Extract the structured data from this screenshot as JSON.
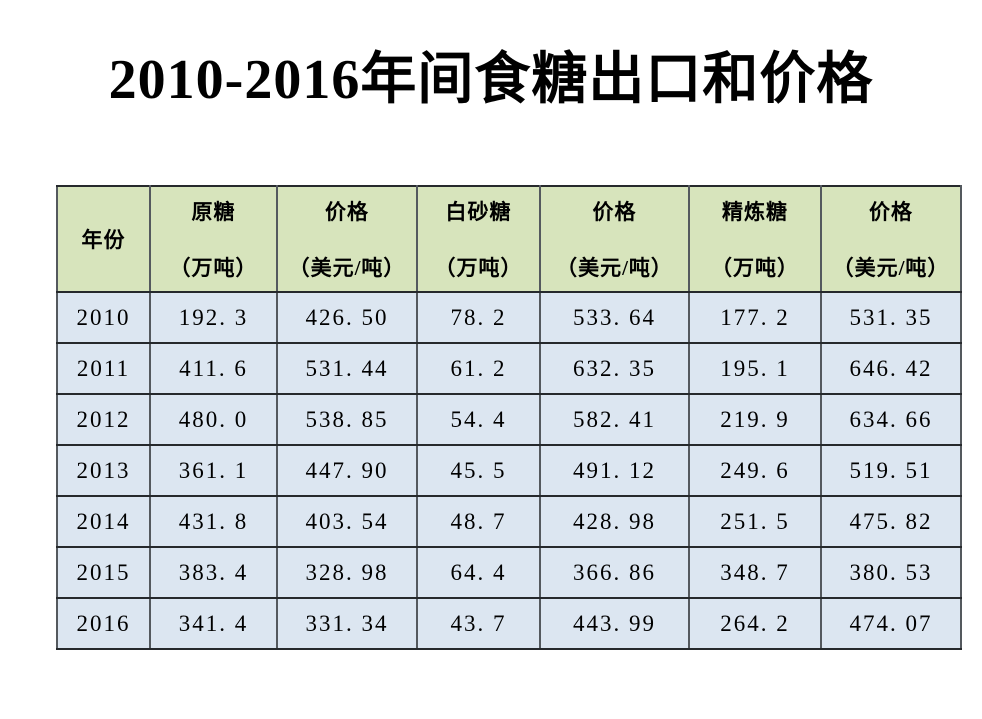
{
  "page": {
    "background": "#ffffff",
    "text_color": "#000000"
  },
  "slide": {
    "title": "2010-2016年间食糖出口和价格"
  },
  "table": {
    "colors": {
      "header_bg": "#d7e4bc",
      "row_bg": "#dce6f1",
      "h_border": "#26292c",
      "v_border": "#54595e"
    },
    "header": [
      {
        "line1": "年份",
        "line2": ""
      },
      {
        "line1": "原糖",
        "line2": "（万吨）"
      },
      {
        "line1": "价格",
        "line2": "（美元/吨）"
      },
      {
        "line1": "白砂糖",
        "line2": "（万吨）"
      },
      {
        "line1": "价格",
        "line2": "（美元/吨）"
      },
      {
        "line1": "精炼糖",
        "line2": "（万吨）"
      },
      {
        "line1": "价格",
        "line2": "（美元/吨）"
      }
    ],
    "rows": [
      [
        "2010",
        "192.3",
        "426.50",
        "78.2",
        "533.64",
        "177.2",
        "531.35"
      ],
      [
        "2011",
        "411.6",
        "531.44",
        "61.2",
        "632.35",
        "195.1",
        "646.42"
      ],
      [
        "2012",
        "480.0",
        "538.85",
        "54.4",
        "582.41",
        "219.9",
        "634.66"
      ],
      [
        "2013",
        "361.1",
        "447.90",
        "45.5",
        "491.12",
        "249.6",
        "519.51"
      ],
      [
        "2014",
        "431.8",
        "403.54",
        "48.7",
        "428.98",
        "251.5",
        "475.82"
      ],
      [
        "2015",
        "383.4",
        "328.98",
        "64.4",
        "366.86",
        "348.7",
        "380.53"
      ],
      [
        "2016",
        "341.4",
        "331.34",
        "43.7",
        "443.99",
        "264.2",
        "474.07"
      ]
    ]
  },
  "chart_data": {
    "type": "table",
    "title": "2010-2016年间食糖出口和价格",
    "columns": [
      "年份",
      "原糖（万吨）",
      "价格（美元/吨）",
      "白砂糖（万吨）",
      "价格（美元/吨）",
      "精炼糖（万吨）",
      "价格（美元/吨）"
    ],
    "rows": [
      [
        2010,
        192.3,
        426.5,
        78.2,
        533.64,
        177.2,
        531.35
      ],
      [
        2011,
        411.6,
        531.44,
        61.2,
        632.35,
        195.1,
        646.42
      ],
      [
        2012,
        480.0,
        538.85,
        54.4,
        582.41,
        219.9,
        634.66
      ],
      [
        2013,
        361.1,
        447.9,
        45.5,
        491.12,
        249.6,
        519.51
      ],
      [
        2014,
        431.8,
        403.54,
        48.7,
        428.98,
        251.5,
        475.82
      ],
      [
        2015,
        383.4,
        328.98,
        64.4,
        366.86,
        348.7,
        380.53
      ],
      [
        2016,
        341.4,
        331.34,
        43.7,
        443.99,
        264.2,
        474.07
      ]
    ]
  }
}
